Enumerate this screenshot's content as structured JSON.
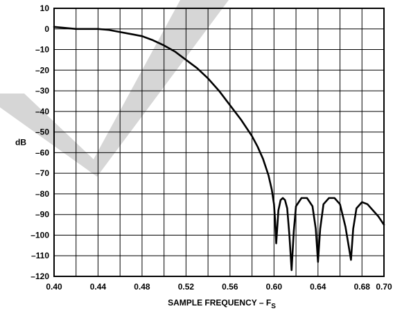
{
  "chart_data": {
    "type": "line",
    "title": "",
    "xlabel": "SAMPLE FREQUENCY – F",
    "xlabel_subscript": "S",
    "ylabel": "dB",
    "xlim": [
      0.4,
      0.7
    ],
    "ylim": [
      -120,
      10
    ],
    "x_major_step": 0.04,
    "x_minor_step": 0.02,
    "y_step": 10,
    "grid": true,
    "xtick_labels": [
      "0.40",
      "0.44",
      "0.48",
      "0.52",
      "0.56",
      "0.60",
      "0.64",
      "0.68",
      "0.70"
    ],
    "ytick_labels": [
      "10",
      "0",
      "–10",
      "–20",
      "–30",
      "–40",
      "–50",
      "–60",
      "–70",
      "–80",
      "–90",
      "–100",
      "–110",
      "–120"
    ],
    "series": [
      {
        "color": "#000000",
        "x": [
          0.4,
          0.41,
          0.42,
          0.43,
          0.44,
          0.45,
          0.46,
          0.47,
          0.48,
          0.49,
          0.5,
          0.51,
          0.52,
          0.53,
          0.54,
          0.55,
          0.56,
          0.57,
          0.58,
          0.585,
          0.59,
          0.595,
          0.598,
          0.6,
          0.601,
          0.602,
          0.604,
          0.606,
          0.608,
          0.61,
          0.612,
          0.614,
          0.616,
          0.618,
          0.62,
          0.625,
          0.63,
          0.635,
          0.638,
          0.64,
          0.642,
          0.645,
          0.65,
          0.655,
          0.66,
          0.665,
          0.67,
          0.672,
          0.675,
          0.68,
          0.685,
          0.69,
          0.695,
          0.7
        ],
        "values": [
          1,
          0.5,
          0,
          0,
          0,
          -0.5,
          -1.5,
          -2.5,
          -3.5,
          -5.5,
          -8,
          -11,
          -15,
          -19,
          -24,
          -30,
          -37,
          -44,
          -52,
          -57,
          -63,
          -71,
          -78,
          -85,
          -93,
          -104,
          -88,
          -83,
          -82,
          -83,
          -87,
          -100,
          -117,
          -98,
          -86,
          -82,
          -82,
          -86,
          -97,
          -113,
          -97,
          -85,
          -82,
          -82,
          -85,
          -96,
          -112,
          -97,
          -87,
          -84,
          -85,
          -88,
          -91,
          -95
        ]
      }
    ]
  }
}
